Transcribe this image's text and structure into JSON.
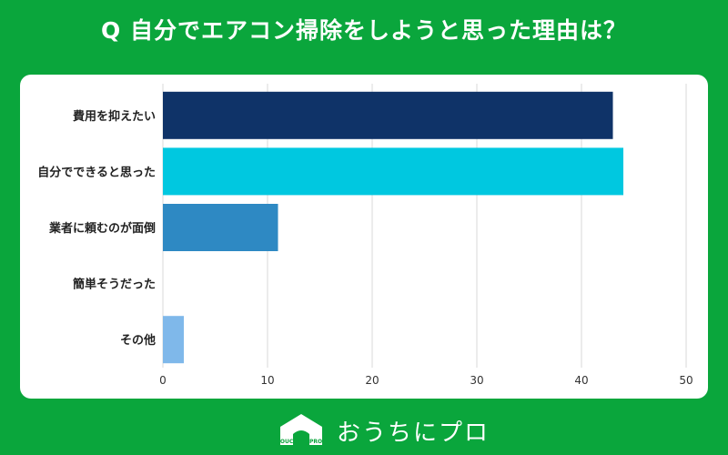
{
  "title": "Q 自分でエアコン掃除をしようと思った理由は？",
  "chart_data": {
    "type": "bar",
    "orientation": "horizontal",
    "categories": [
      "費用を抑えたい",
      "自分でできると思った",
      "業者に頼むのが面倒",
      "簡単そうだった",
      "その他"
    ],
    "values": [
      43,
      44,
      11,
      0,
      2
    ],
    "colors": [
      "#0f3368",
      "#00c8e0",
      "#2e89c3",
      "#7fb8ea",
      "#7fb8ea"
    ],
    "xticks": [
      "0",
      "10",
      "20",
      "30",
      "40",
      "50"
    ],
    "xlim": [
      0,
      50
    ],
    "grid": true
  },
  "footer": {
    "logo_icon": "house-logo-icon",
    "logo_mark_text": "OUCHI ni PRO",
    "brand_name": "おうちにプロ"
  }
}
